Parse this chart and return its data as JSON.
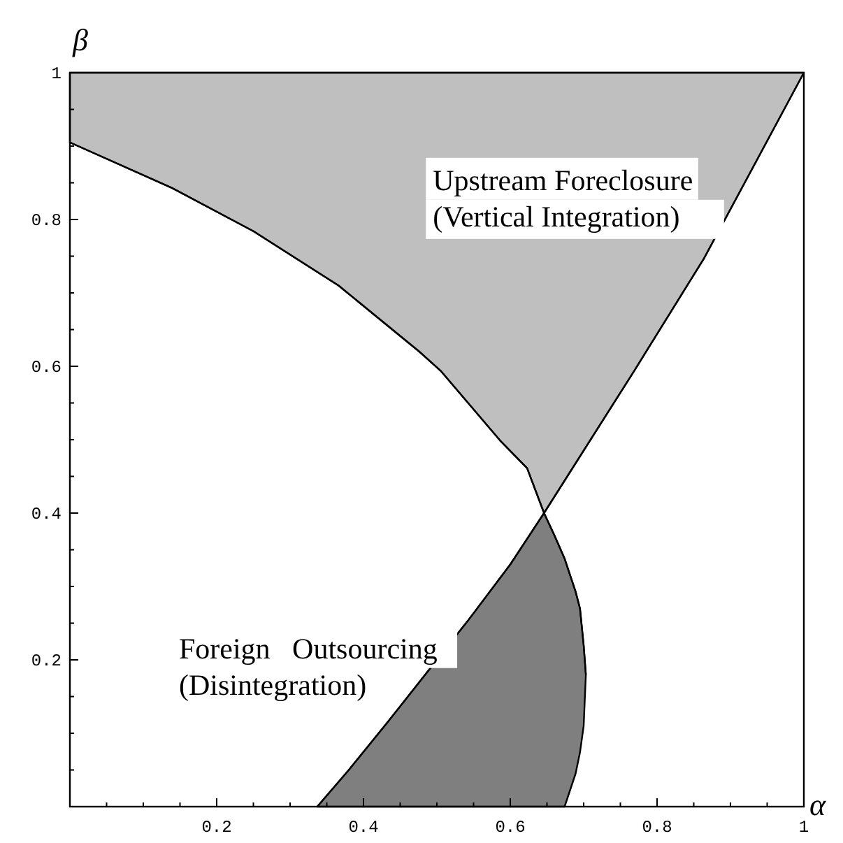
{
  "chart_data": {
    "type": "line",
    "xlabel": "α",
    "ylabel": "β",
    "xlim": [
      0,
      1
    ],
    "ylim": [
      0,
      1
    ],
    "xticks": [
      {
        "value": 0.05,
        "label": null
      },
      {
        "value": 0.1,
        "label": null
      },
      {
        "value": 0.15,
        "label": null
      },
      0.2,
      {
        "value": 0.25,
        "label": null
      },
      {
        "value": 0.3,
        "label": null
      },
      {
        "value": 0.35,
        "label": null
      },
      0.4,
      {
        "value": 0.45,
        "label": null
      },
      {
        "value": 0.5,
        "label": null
      },
      {
        "value": 0.55,
        "label": null
      },
      0.6,
      {
        "value": 0.65,
        "label": null
      },
      {
        "value": 0.7,
        "label": null
      },
      {
        "value": 0.75,
        "label": null
      },
      0.8,
      {
        "value": 0.85,
        "label": null
      },
      {
        "value": 0.9,
        "label": null
      },
      {
        "value": 0.95,
        "label": null
      },
      1
    ],
    "yticks": [
      {
        "value": 0.05,
        "label": null
      },
      {
        "value": 0.1,
        "label": null
      },
      {
        "value": 0.15,
        "label": null
      },
      0.2,
      {
        "value": 0.25,
        "label": null
      },
      {
        "value": 0.3,
        "label": null
      },
      {
        "value": 0.35,
        "label": null
      },
      0.4,
      {
        "value": 0.45,
        "label": null
      },
      {
        "value": 0.5,
        "label": null
      },
      {
        "value": 0.55,
        "label": null
      },
      0.6,
      {
        "value": 0.65,
        "label": null
      },
      {
        "value": 0.7,
        "label": null
      },
      {
        "value": 0.75,
        "label": null
      },
      0.8,
      {
        "value": 0.85,
        "label": null
      },
      {
        "value": 0.9,
        "label": null
      },
      {
        "value": 0.95,
        "label": null
      },
      1
    ],
    "grid": false,
    "series": [
      {
        "color": "#000000",
        "x": [
          0,
          0.139,
          0.25,
          0.366,
          0.476,
          0.505,
          0.586,
          0.623,
          0.646,
          0.769,
          0.864,
          1
        ],
        "values": [
          0.905,
          0.843,
          0.784,
          0.71,
          0.62,
          0.594,
          0.499,
          0.461,
          0.4,
          0.594,
          0.747,
          1
        ],
        "upper": [
          1,
          1,
          1,
          1,
          1,
          1,
          1,
          1,
          1,
          1,
          1,
          1
        ],
        "lower": [
          0.905,
          0.843,
          0.784,
          0.71,
          0.62,
          0.594,
          0.499,
          0.461,
          0.4,
          0.594,
          0.747,
          1
        ]
      },
      {
        "color": "#000000",
        "x": [
          0.337,
          0.38,
          0.432,
          0.542,
          0.6,
          0.646,
          0.66,
          0.674,
          0.689,
          0.695,
          0.7,
          0.703
        ],
        "values": [
          0,
          0.05,
          0.114,
          0.253,
          0.33,
          0.4,
          0.37,
          0.338,
          0.293,
          0.27,
          0.22,
          0.18
        ],
        "upper": [
          0,
          0.05,
          0.114,
          0.253,
          0.33,
          0.4,
          0.37,
          0.338,
          0.293,
          0.27,
          0.22,
          0.18
        ],
        "lower": [
          0,
          0,
          0,
          0,
          0,
          0,
          0,
          0,
          0.045,
          0.074,
          0.11,
          0.18
        ]
      }
    ],
    "annotations": [
      "Upstream Foreclosure\n(Vertical Integration)",
      "Foreign   Outsourcing\n(Disintegration)"
    ]
  }
}
